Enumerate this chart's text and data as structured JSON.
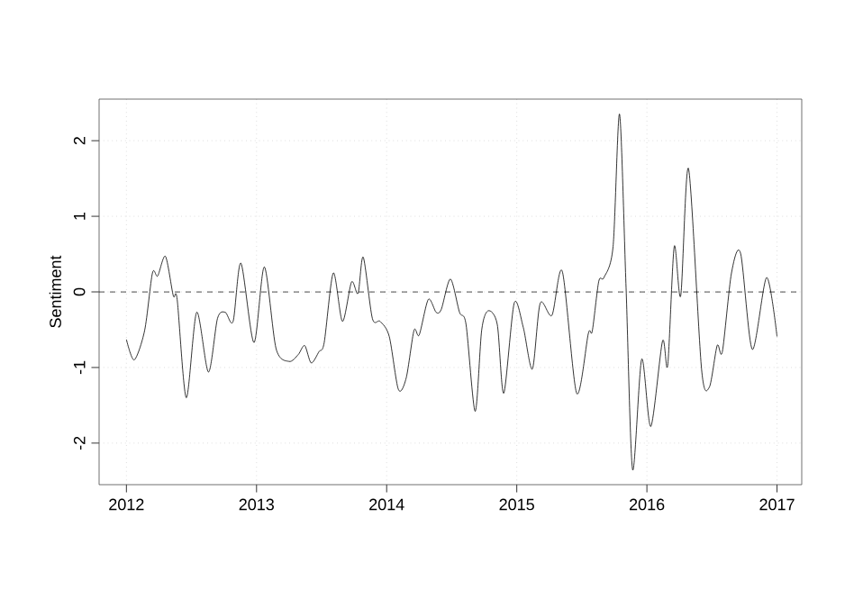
{
  "chart_data": {
    "type": "line",
    "ylabel": "Sentiment",
    "x": [
      2012.0,
      2012.06,
      2012.14,
      2012.2,
      2012.24,
      2012.3,
      2012.36,
      2012.39,
      2012.46,
      2012.54,
      2012.63,
      2012.7,
      2012.76,
      2012.82,
      2012.88,
      2012.98,
      2013.06,
      2013.15,
      2013.25,
      2013.32,
      2013.37,
      2013.42,
      2013.48,
      2013.52,
      2013.59,
      2013.66,
      2013.73,
      2013.78,
      2013.82,
      2013.89,
      2013.95,
      2014.02,
      2014.09,
      2014.15,
      2014.21,
      2014.25,
      2014.32,
      2014.38,
      2014.42,
      2014.49,
      2014.56,
      2014.61,
      2014.68,
      2014.73,
      2014.78,
      2014.85,
      2014.9,
      2014.98,
      2015.05,
      2015.12,
      2015.18,
      2015.27,
      2015.35,
      2015.46,
      2015.55,
      2015.58,
      2015.63,
      2015.67,
      2015.74,
      2015.79,
      2015.84,
      2015.89,
      2015.96,
      2016.03,
      2016.12,
      2016.16,
      2016.21,
      2016.26,
      2016.32,
      2016.42,
      2016.48,
      2016.54,
      2016.58,
      2016.65,
      2016.72,
      2016.81,
      2016.92,
      2017.0
    ],
    "series": [
      {
        "color": "#000000",
        "values": [
          -0.63,
          -0.9,
          -0.51,
          0.25,
          0.21,
          0.47,
          -0.05,
          -0.1,
          -1.4,
          -0.27,
          -1.06,
          -0.35,
          -0.27,
          -0.39,
          0.38,
          -0.67,
          0.33,
          -0.75,
          -0.92,
          -0.83,
          -0.71,
          -0.94,
          -0.79,
          -0.67,
          0.25,
          -0.39,
          0.13,
          -0.02,
          0.46,
          -0.35,
          -0.39,
          -0.59,
          -1.29,
          -1.14,
          -0.51,
          -0.57,
          -0.1,
          -0.27,
          -0.23,
          0.17,
          -0.27,
          -0.43,
          -1.58,
          -0.51,
          -0.25,
          -0.43,
          -1.34,
          -0.15,
          -0.47,
          -1.02,
          -0.15,
          -0.31,
          0.27,
          -1.34,
          -0.55,
          -0.52,
          0.14,
          0.19,
          0.6,
          2.35,
          0.05,
          -2.35,
          -0.89,
          -1.78,
          -0.65,
          -0.97,
          0.6,
          -0.05,
          1.63,
          -1.02,
          -1.26,
          -0.71,
          -0.79,
          0.25,
          0.51,
          -0.76,
          0.19,
          -0.59
        ]
      }
    ],
    "xlim": [
      2011.79,
      2017.19
    ],
    "ylim": [
      -2.55,
      2.55
    ],
    "xticks": [
      2012,
      2013,
      2014,
      2015,
      2016,
      2017
    ],
    "yticks": [
      -2,
      -1,
      0,
      1,
      2
    ],
    "grid": true,
    "ref_lines": [
      {
        "axis": "y",
        "value": 0,
        "line_style": "dashed"
      }
    ]
  }
}
